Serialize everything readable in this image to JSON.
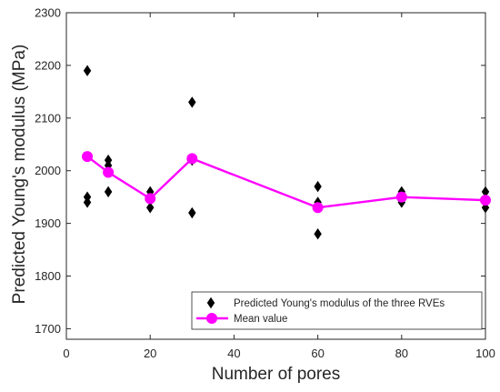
{
  "chart_data": {
    "type": "scatter",
    "xlabel": "Number of pores",
    "ylabel": "Predicted Young's modulus (MPa)",
    "xlim": [
      0,
      100
    ],
    "ylim": [
      1680,
      2300
    ],
    "x_ticks": [
      0,
      20,
      40,
      60,
      80,
      100
    ],
    "y_ticks": [
      1700,
      1800,
      1900,
      2000,
      2100,
      2200,
      2300
    ],
    "grid": false,
    "legend_position": "bottom-right",
    "series": [
      {
        "name": "Predicted Young's modulus of the three RVEs",
        "kind": "scatter",
        "marker": "diamond",
        "color": "#000000",
        "points": [
          [
            5,
            2190
          ],
          [
            5,
            1950
          ],
          [
            5,
            1940
          ],
          [
            10,
            2020
          ],
          [
            10,
            2010
          ],
          [
            10,
            1960
          ],
          [
            20,
            1960
          ],
          [
            20,
            1950
          ],
          [
            20,
            1930
          ],
          [
            30,
            2130
          ],
          [
            30,
            2020
          ],
          [
            30,
            1920
          ],
          [
            60,
            1970
          ],
          [
            60,
            1940
          ],
          [
            60,
            1880
          ],
          [
            80,
            1960
          ],
          [
            80,
            1950
          ],
          [
            80,
            1940
          ],
          [
            100,
            1960
          ],
          [
            100,
            1945
          ],
          [
            100,
            1930
          ]
        ]
      },
      {
        "name": "Mean value",
        "kind": "line",
        "marker": "circle",
        "color": "#ff00ff",
        "points": [
          [
            5,
            2027
          ],
          [
            10,
            1997
          ],
          [
            20,
            1947
          ],
          [
            30,
            2023
          ],
          [
            60,
            1930
          ],
          [
            80,
            1950
          ],
          [
            100,
            1944
          ]
        ]
      }
    ]
  }
}
